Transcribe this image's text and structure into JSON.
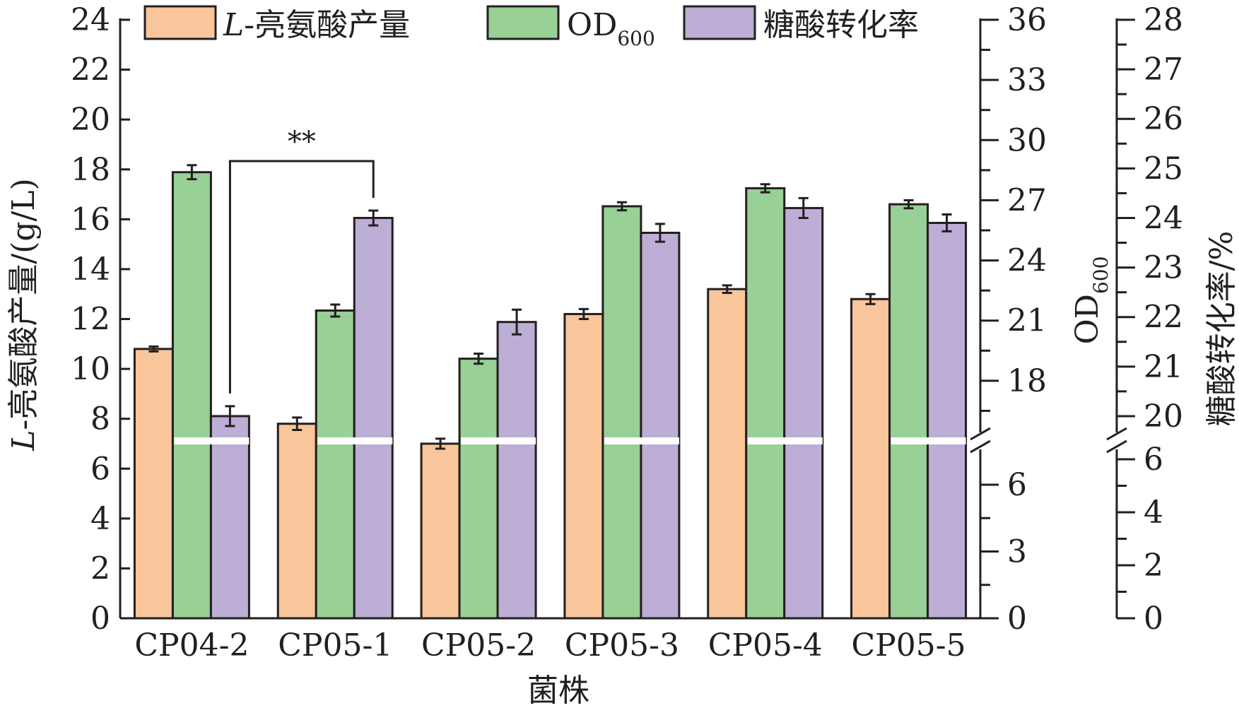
{
  "chart_data": {
    "type": "bar",
    "xlabel": "菌株",
    "categories": [
      "CP04-2",
      "CP05-1",
      "CP05-2",
      "CP05-3",
      "CP05-4",
      "CP05-5"
    ],
    "series": [
      {
        "name_prefix": "L",
        "name_suffix": "-亮氨酸产量",
        "axis": "left",
        "color": "#f8c69a",
        "values": [
          10.8,
          7.8,
          7.0,
          12.2,
          13.2,
          12.8
        ],
        "errors": [
          0.1,
          0.25,
          0.2,
          0.2,
          0.15,
          0.2
        ]
      },
      {
        "name_main": "OD",
        "name_sub": "600",
        "axis": "right1",
        "color": "#99d095",
        "values": [
          28.4,
          21.5,
          19.1,
          26.7,
          27.6,
          26.8
        ],
        "errors": [
          0.35,
          0.3,
          0.25,
          0.2,
          0.2,
          0.2
        ]
      },
      {
        "name": "糖酸转化率",
        "axis": "right2",
        "color": "#bdaed5",
        "values": [
          20.0,
          24.0,
          21.9,
          23.7,
          24.2,
          23.9
        ],
        "errors": [
          0.2,
          0.15,
          0.25,
          0.18,
          0.2,
          0.17
        ]
      }
    ],
    "axes": {
      "left": {
        "label_italic": "L",
        "label_rest": "-亮氨酸产量/(g/L)",
        "range": [
          0,
          24
        ],
        "ticks": [
          "0",
          "2",
          "4",
          "6",
          "8",
          "10",
          "12",
          "14",
          "16",
          "18",
          "20",
          "22",
          "24"
        ]
      },
      "right1": {
        "label_main": "OD",
        "label_sub": "600",
        "break_between": [
          6,
          15
        ],
        "lower_ticks": [
          "0",
          "3",
          "6"
        ],
        "upper_ticks": [
          "18",
          "21",
          "24",
          "27",
          "30",
          "33",
          "36"
        ]
      },
      "right2": {
        "label": "糖酸转化率/%",
        "break_between": [
          6,
          19.5
        ],
        "lower_ticks": [
          "0",
          "2",
          "4",
          "6"
        ],
        "upper_ticks": [
          "20",
          "21",
          "22",
          "23",
          "24",
          "25",
          "26",
          "27",
          "28"
        ]
      }
    },
    "significance": {
      "label": "**",
      "between": [
        "CP04-2",
        "CP05-1"
      ]
    },
    "legend": "top",
    "grid": false
  }
}
